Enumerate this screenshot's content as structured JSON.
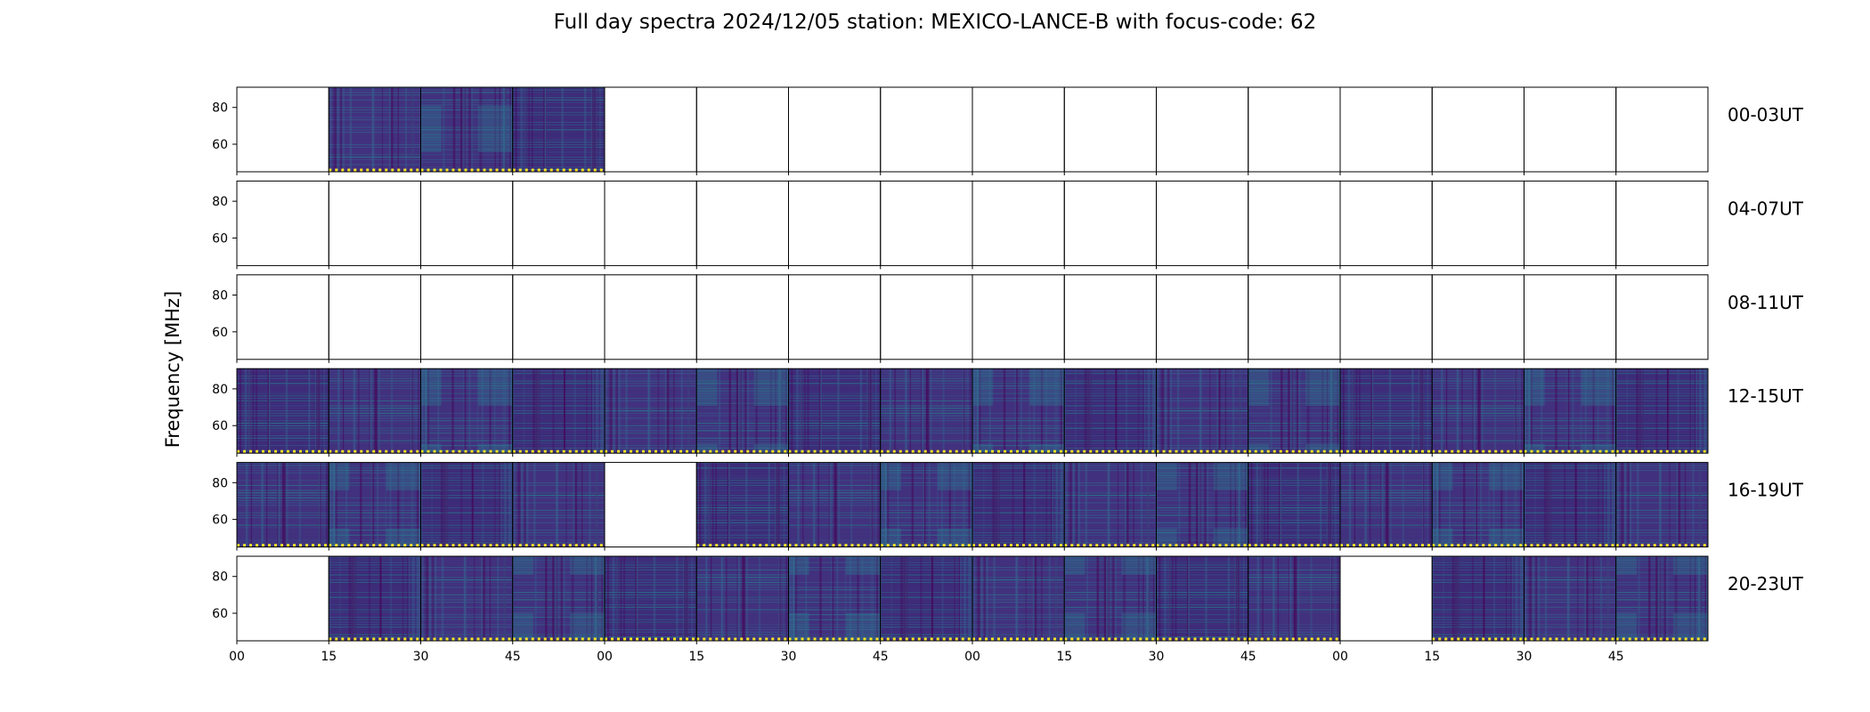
{
  "chart_data": {
    "type": "heatmap",
    "title": "Full day spectra 2024/12/05 station: MEXICO-LANCE-B with focus-code: 62",
    "ylabel": "Frequency [MHz]",
    "xlabel": "",
    "ylim": [
      45,
      91
    ],
    "yticks": [
      60,
      80
    ],
    "x_tick_labels": [
      "00",
      "15",
      "30",
      "45",
      "00",
      "15",
      "30",
      "45",
      "00",
      "15",
      "30",
      "45",
      "00",
      "15",
      "30",
      "45"
    ],
    "colormap": "viridis",
    "marker_color": "#fde725",
    "rows": [
      {
        "label": "00-03UT",
        "panels": [
          0,
          1,
          1,
          1,
          0,
          0,
          0,
          0,
          0,
          0,
          0,
          0,
          0,
          0,
          0,
          0
        ]
      },
      {
        "label": "04-07UT",
        "panels": [
          0,
          0,
          0,
          0,
          0,
          0,
          0,
          0,
          0,
          0,
          0,
          0,
          0,
          0,
          0,
          0
        ]
      },
      {
        "label": "08-11UT",
        "panels": [
          0,
          0,
          0,
          0,
          0,
          0,
          0,
          0,
          0,
          0,
          0,
          0,
          0,
          0,
          0,
          0
        ]
      },
      {
        "label": "12-15UT",
        "panels": [
          1,
          1,
          1,
          1,
          1,
          1,
          1,
          1,
          1,
          1,
          1,
          1,
          1,
          1,
          1,
          1
        ]
      },
      {
        "label": "16-19UT",
        "panels": [
          1,
          1,
          1,
          1,
          0,
          1,
          1,
          1,
          1,
          1,
          1,
          1,
          1,
          1,
          1,
          1
        ]
      },
      {
        "label": "20-23UT",
        "panels": [
          0,
          1,
          1,
          1,
          1,
          1,
          1,
          1,
          1,
          1,
          1,
          1,
          0,
          1,
          1,
          1
        ]
      }
    ]
  }
}
